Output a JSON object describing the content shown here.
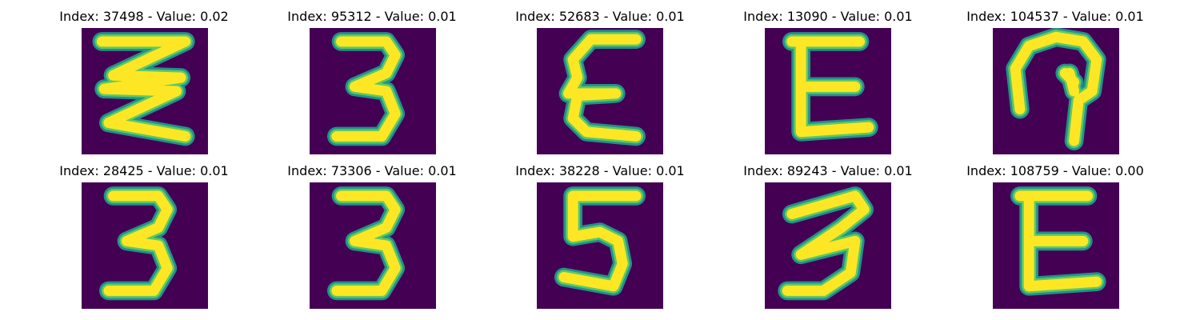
{
  "colors": {
    "background": "#440154",
    "edge": "#21918c",
    "stroke": "#fde725",
    "mid": "#5ec962"
  },
  "panels": [
    {
      "title": "Index: 37498 - Value: 0.02",
      "digit": "zigzag"
    },
    {
      "title": "Index: 95312 - Value: 0.01",
      "digit": "3"
    },
    {
      "title": "Index: 52683 - Value: 0.01",
      "digit": "E-open"
    },
    {
      "title": "Index: 13090 - Value: 0.01",
      "digit": "E"
    },
    {
      "title": "Index: 104537 - Value: 0.01",
      "digit": "loop"
    },
    {
      "title": "Index: 28425 - Value: 0.01",
      "digit": "3"
    },
    {
      "title": "Index: 73306 - Value: 0.01",
      "digit": "3"
    },
    {
      "title": "Index: 38228 - Value: 0.01",
      "digit": "5"
    },
    {
      "title": "Index: 89243 - Value: 0.01",
      "digit": "3-slant"
    },
    {
      "title": "Index: 108759 - Value: 0.00",
      "digit": "E"
    }
  ]
}
